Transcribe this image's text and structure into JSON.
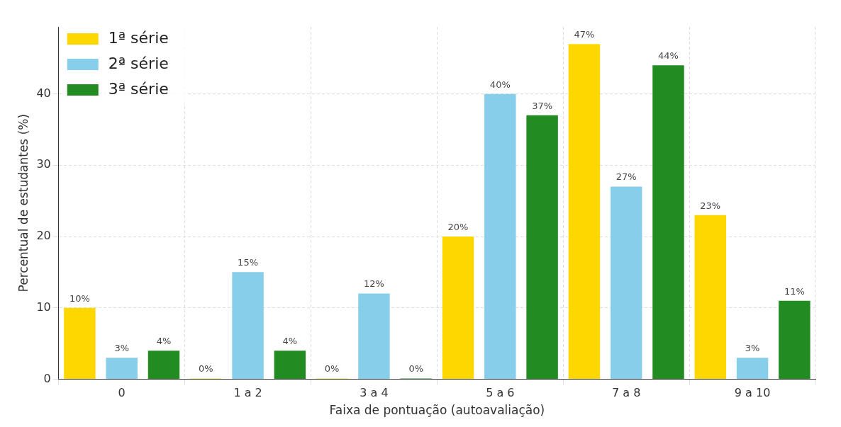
{
  "chart_data": {
    "type": "bar",
    "categories": [
      "0",
      "1 a 2",
      "3 a 4",
      "5 a 6",
      "7 a 8",
      "9 a 10"
    ],
    "series": [
      {
        "name": "1ª série",
        "color": "#ffd700",
        "values": [
          10,
          0,
          0,
          20,
          47,
          23
        ],
        "value_labels": [
          "10%",
          "0%",
          "0%",
          "20%",
          "47%",
          "23%"
        ]
      },
      {
        "name": "2ª série",
        "color": "#87ceeb",
        "values": [
          3,
          15,
          12,
          40,
          27,
          3
        ],
        "value_labels": [
          "3%",
          "15%",
          "12%",
          "40%",
          "27%",
          "3%"
        ]
      },
      {
        "name": "3ª série",
        "color": "#228b22",
        "values": [
          4,
          4,
          0,
          37,
          44,
          11
        ],
        "value_labels": [
          "4%",
          "4%",
          "0%",
          "37%",
          "44%",
          "11%"
        ]
      }
    ],
    "xlabel": "Faixa de pontuação (autoavaliação)",
    "ylabel": "Percentual de estudantes (%)",
    "ylim": [
      0,
      49.4
    ],
    "yticks": [
      0,
      10,
      20,
      30,
      40
    ],
    "grid": true,
    "legend": "top left"
  }
}
